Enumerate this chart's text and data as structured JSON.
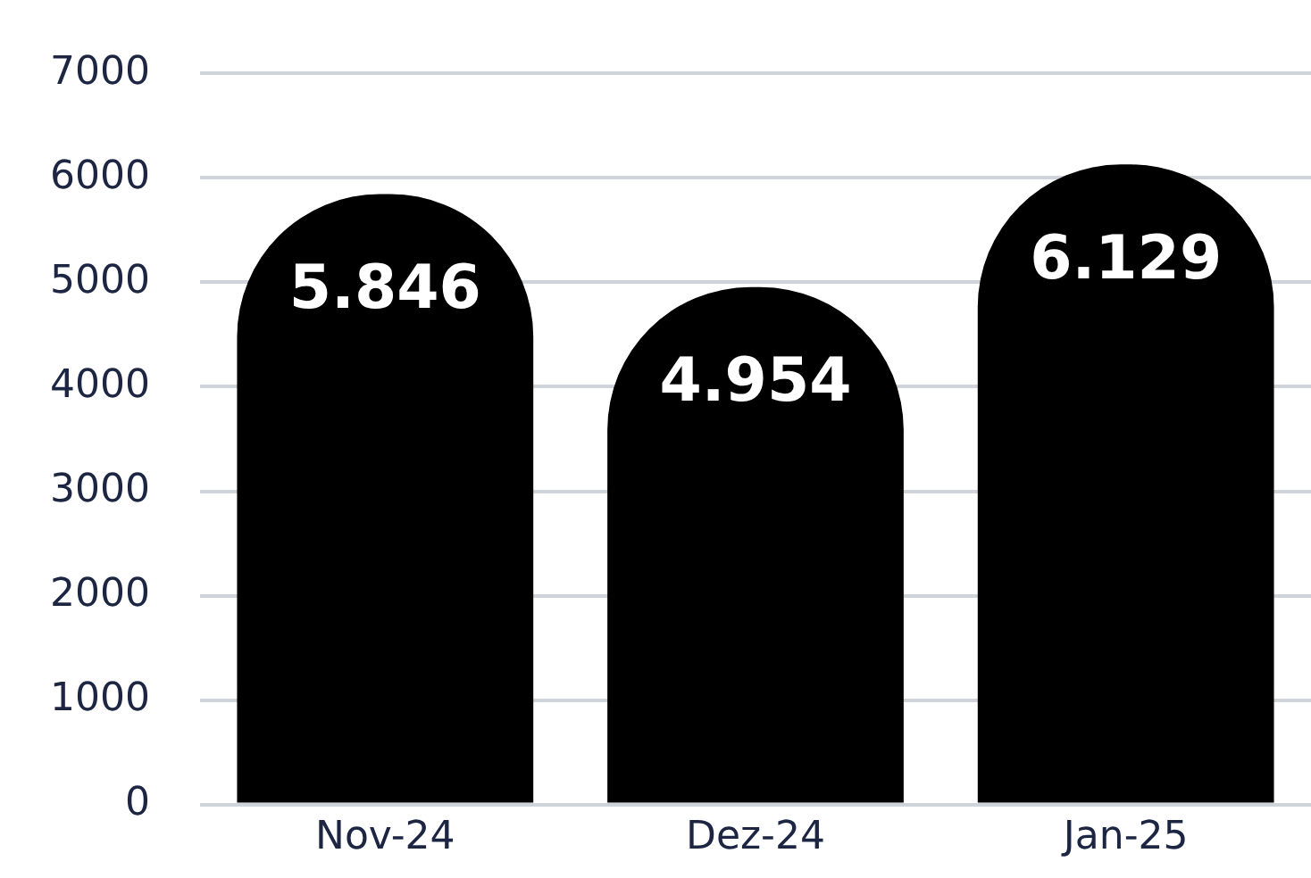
{
  "chart_data": {
    "type": "bar",
    "categories": [
      "Nov-24",
      "Dez-24",
      "Jan-25"
    ],
    "values": [
      5846,
      4954,
      6129
    ],
    "color": "#000000",
    "value_labels": [
      "5.846",
      "4.954",
      "6.129"
    ],
    "ylim": [
      0,
      7000
    ],
    "yticks": [
      0,
      1000,
      2000,
      3000,
      4000,
      5000,
      6000,
      7000
    ],
    "grid": "y",
    "legend": false
  }
}
